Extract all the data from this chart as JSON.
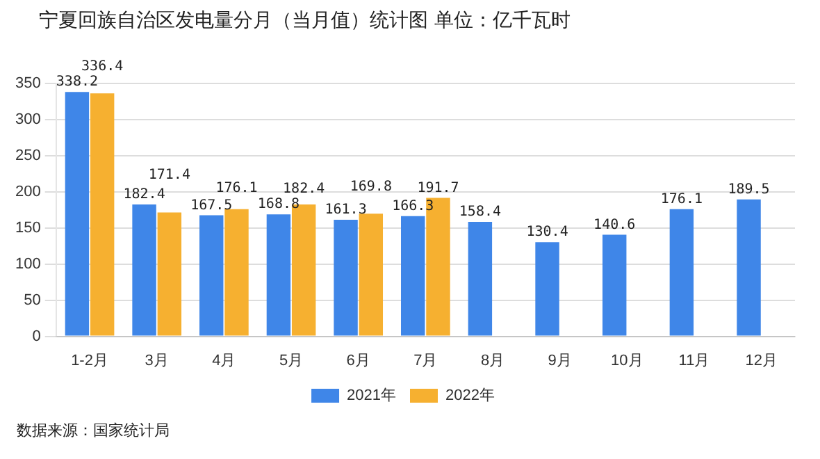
{
  "chart_data": {
    "type": "bar",
    "title": "宁夏回族自治区发电量分月（当月值）统计图 单位：亿千瓦时",
    "categories": [
      "1-2月",
      "3月",
      "4月",
      "5月",
      "6月",
      "7月",
      "8月",
      "9月",
      "10月",
      "11月",
      "12月"
    ],
    "series": [
      {
        "name": "2021年",
        "color": "#3f86e8",
        "values": [
          338.2,
          182.4,
          167.5,
          168.8,
          161.3,
          166.3,
          158.4,
          130.4,
          140.6,
          176.1,
          189.5
        ]
      },
      {
        "name": "2022年",
        "color": "#f6b030",
        "values": [
          336.4,
          171.4,
          176.1,
          182.4,
          169.8,
          191.7,
          null,
          null,
          null,
          null,
          null
        ]
      }
    ],
    "ylim": [
      0,
      350
    ],
    "yticks": [
      0,
      50,
      100,
      150,
      200,
      250,
      300,
      350
    ],
    "grid": "y",
    "legend": "bottom",
    "data_labels": true,
    "annotations": [
      "数据来源：国家统计局"
    ]
  }
}
